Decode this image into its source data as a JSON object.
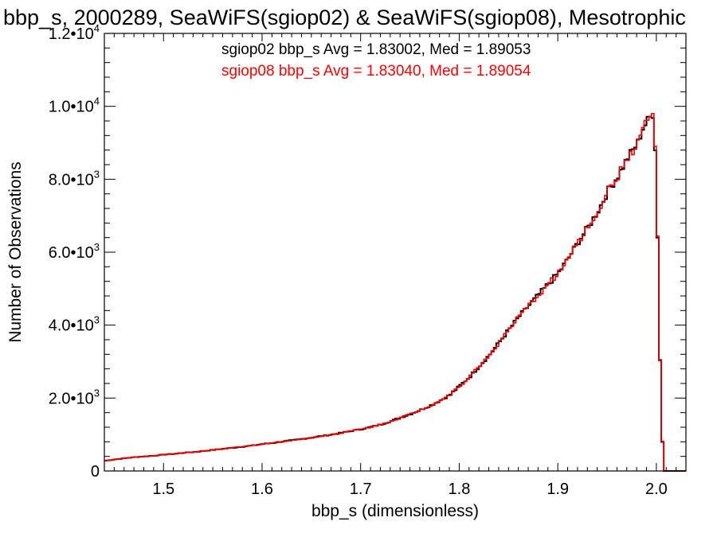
{
  "chart_data": {
    "type": "line",
    "title": "bbp_s, 2000289, SeaWiFS(sgiop02) & SeaWiFS(sgiop08), Mesotrophic",
    "xlabel": "bbp_s (dimensionless)",
    "ylabel": "Number of Observations",
    "xlim": [
      1.44,
      2.03
    ],
    "ylim": [
      0,
      12000
    ],
    "x_ticks": [
      {
        "value": 1.5,
        "label": "1.5"
      },
      {
        "value": 1.6,
        "label": "1.6"
      },
      {
        "value": 1.7,
        "label": "1.7"
      },
      {
        "value": 1.8,
        "label": "1.8"
      },
      {
        "value": 1.9,
        "label": "1.9"
      },
      {
        "value": 2.0,
        "label": "2.0"
      }
    ],
    "y_ticks": [
      {
        "value": 0,
        "mantissa": "0",
        "exponent": ""
      },
      {
        "value": 2000,
        "mantissa": "2.0•10",
        "exponent": "3"
      },
      {
        "value": 4000,
        "mantissa": "4.0•10",
        "exponent": "3"
      },
      {
        "value": 6000,
        "mantissa": "6.0•10",
        "exponent": "3"
      },
      {
        "value": 8000,
        "mantissa": "8.0•10",
        "exponent": "3"
      },
      {
        "value": 10000,
        "mantissa": "1.0•10",
        "exponent": "4"
      },
      {
        "value": 12000,
        "mantissa": "1.2•10",
        "exponent": "4"
      }
    ],
    "legend": [
      {
        "text": "sgiop02 bbp_s Avg = 1.83002, Med = 1.89053",
        "color": "#000000"
      },
      {
        "text": "sgiop08 bbp_s Avg = 1.83040, Med = 1.89054",
        "color": "#ff0000"
      }
    ],
    "series": [
      {
        "color": "#000000",
        "x": [
          1.44,
          1.45,
          1.46,
          1.47,
          1.48,
          1.49,
          1.5,
          1.51,
          1.52,
          1.53,
          1.54,
          1.55,
          1.56,
          1.57,
          1.58,
          1.59,
          1.6,
          1.61,
          1.62,
          1.63,
          1.64,
          1.65,
          1.66,
          1.67,
          1.68,
          1.69,
          1.7,
          1.71,
          1.72,
          1.73,
          1.74,
          1.75,
          1.76,
          1.77,
          1.78,
          1.79,
          1.8,
          1.81,
          1.82,
          1.83,
          1.84,
          1.85,
          1.86,
          1.87,
          1.88,
          1.89,
          1.9,
          1.91,
          1.92,
          1.93,
          1.94,
          1.95,
          1.96,
          1.97,
          1.98,
          1.985,
          1.99,
          1.995,
          1.998,
          2.0,
          2.003,
          2.006,
          2.01,
          2.02,
          2.03
        ],
        "y": [
          280,
          320,
          350,
          380,
          400,
          420,
          450,
          470,
          500,
          520,
          550,
          580,
          610,
          640,
          670,
          700,
          740,
          770,
          810,
          840,
          880,
          920,
          960,
          1000,
          1050,
          1100,
          1150,
          1210,
          1280,
          1370,
          1470,
          1570,
          1680,
          1800,
          1940,
          2100,
          2350,
          2600,
          2900,
          3200,
          3550,
          3900,
          4250,
          4550,
          4850,
          5150,
          5450,
          5850,
          6300,
          6700,
          7150,
          7700,
          8100,
          8600,
          9000,
          9400,
          9600,
          9800,
          8700,
          6400,
          2400,
          0,
          0,
          0,
          0
        ]
      },
      {
        "color": "#ff0000",
        "x": [
          1.44,
          1.45,
          1.46,
          1.47,
          1.48,
          1.49,
          1.5,
          1.51,
          1.52,
          1.53,
          1.54,
          1.55,
          1.56,
          1.57,
          1.58,
          1.59,
          1.6,
          1.61,
          1.62,
          1.63,
          1.64,
          1.65,
          1.66,
          1.67,
          1.68,
          1.69,
          1.7,
          1.71,
          1.72,
          1.73,
          1.74,
          1.75,
          1.76,
          1.77,
          1.78,
          1.79,
          1.8,
          1.81,
          1.82,
          1.83,
          1.84,
          1.85,
          1.86,
          1.87,
          1.88,
          1.89,
          1.9,
          1.91,
          1.92,
          1.93,
          1.94,
          1.95,
          1.96,
          1.97,
          1.98,
          1.985,
          1.99,
          1.995,
          1.998,
          2.0,
          2.003,
          2.006,
          2.01,
          2.02,
          2.03
        ],
        "y": [
          280,
          320,
          350,
          380,
          400,
          420,
          450,
          470,
          500,
          520,
          550,
          580,
          610,
          640,
          670,
          700,
          740,
          770,
          810,
          840,
          880,
          920,
          960,
          1000,
          1050,
          1100,
          1150,
          1210,
          1280,
          1370,
          1470,
          1570,
          1680,
          1800,
          1940,
          2100,
          2350,
          2600,
          2900,
          3200,
          3550,
          3900,
          4250,
          4550,
          4850,
          5150,
          5450,
          5850,
          6300,
          6700,
          7150,
          7700,
          8100,
          8600,
          9000,
          9400,
          9600,
          9800,
          8700,
          6400,
          2400,
          0,
          0,
          0,
          0
        ]
      }
    ]
  }
}
